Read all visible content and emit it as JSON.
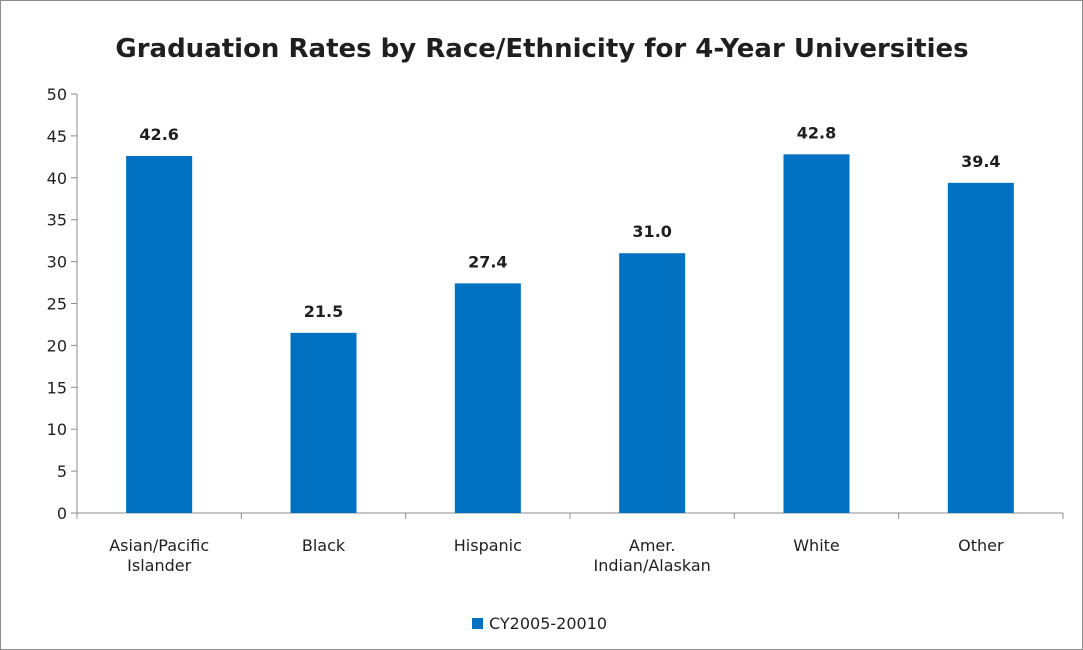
{
  "chart_data": {
    "type": "bar",
    "title": "Graduation Rates by Race/Ethnicity for 4-Year Universities",
    "xlabel": "",
    "ylabel": "",
    "categories": [
      [
        "Asian/Pacific",
        "Islander"
      ],
      [
        "Black"
      ],
      [
        "Hispanic"
      ],
      [
        "Amer.",
        "Indian/Alaskan"
      ],
      [
        "White"
      ],
      [
        "Other"
      ]
    ],
    "series": [
      {
        "name": "CY2005-20010",
        "values": [
          42.6,
          21.5,
          27.4,
          31.0,
          42.8,
          39.4
        ],
        "labels": [
          "42.6",
          "21.5",
          "27.4",
          "31.0",
          "42.8",
          "39.4"
        ],
        "color": "#0070c0"
      }
    ],
    "ylim": [
      0,
      50
    ],
    "yticks": [
      0,
      5,
      10,
      15,
      20,
      25,
      30,
      35,
      40,
      45,
      50
    ],
    "grid": false,
    "legend": "bottom"
  }
}
